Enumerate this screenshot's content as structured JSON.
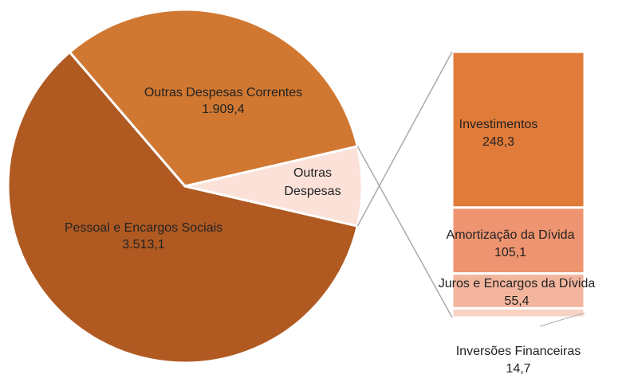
{
  "chart_data": [
    {
      "type": "pie",
      "categories": [
        "Pessoal e Encargos Sociais",
        "Outras Despesas Correntes",
        "Outras Despesas"
      ],
      "values": [
        3513.1,
        1909.4,
        423.5
      ],
      "value_labels": [
        "3.513,1",
        "1.909,4",
        null
      ],
      "colors": [
        "#b05a22",
        "#d07832",
        "#fbe1d8"
      ]
    },
    {
      "type": "bar",
      "categories": [
        "Investimentos",
        "Amortização da Dívida",
        "Juros e Encargos da Dívida",
        "Inversões Financeiras"
      ],
      "values": [
        248.3,
        105.1,
        55.4,
        14.7
      ],
      "value_labels": [
        "248,3",
        "105,1",
        "55,4",
        "14,7"
      ],
      "colors": [
        "#e07b39",
        "#ee9470",
        "#f3b59d",
        "#f8d3c5"
      ]
    }
  ]
}
